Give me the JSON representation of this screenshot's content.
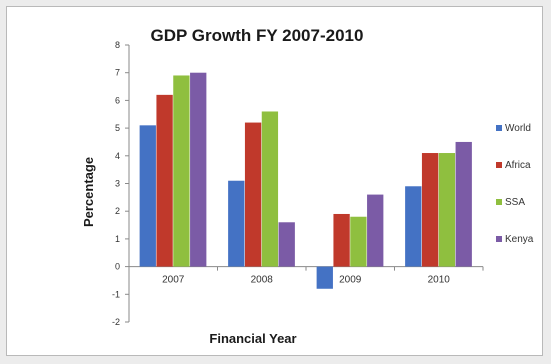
{
  "chart_data": {
    "type": "bar",
    "title": "GDP Growth FY 2007-2010",
    "xlabel": "Financial Year",
    "ylabel": "Percentage",
    "categories": [
      "2007",
      "2008",
      "2009",
      "2010"
    ],
    "ylim": [
      -2,
      8
    ],
    "yticks": [
      -2,
      -1,
      0,
      1,
      2,
      3,
      4,
      5,
      6,
      7,
      8
    ],
    "grid": false,
    "legend_position": "right",
    "series": [
      {
        "name": "World",
        "color": "#4472c4",
        "values": [
          5.1,
          3.1,
          -0.8,
          2.9
        ]
      },
      {
        "name": "Africa",
        "color": "#c0392b",
        "values": [
          6.2,
          5.2,
          1.9,
          4.1
        ]
      },
      {
        "name": "SSA",
        "color": "#8fbf3f",
        "values": [
          6.9,
          5.6,
          1.8,
          4.1
        ]
      },
      {
        "name": "Kenya",
        "color": "#7b5ba6",
        "values": [
          7.0,
          1.6,
          2.6,
          4.5
        ]
      }
    ]
  }
}
